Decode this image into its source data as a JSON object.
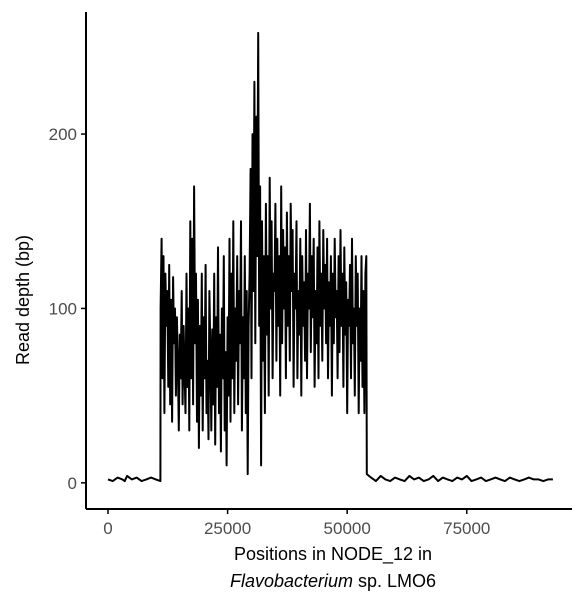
{
  "chart_data": {
    "type": "line",
    "title": "",
    "xlabel": "Positions in NODE_12 in",
    "xlabel_line2_italic": "Flavobacterium",
    "xlabel_line2_rest": " sp. LMO6",
    "ylabel": "Read depth (bp)",
    "xlim": [
      -4600,
      97000
    ],
    "ylim": [
      -15,
      270
    ],
    "xticks": [
      0,
      25000,
      50000,
      75000
    ],
    "xtick_labels": [
      "0",
      "25000",
      "50000",
      "75000"
    ],
    "yticks": [
      0,
      100,
      200
    ],
    "ytick_labels": [
      "0",
      "100",
      "200"
    ],
    "grid": false,
    "legend": "none",
    "line_color": "#000000",
    "series": [
      {
        "x": [
          0,
          1000,
          2000,
          3000,
          3500,
          4000,
          5000,
          6000,
          7000,
          8000,
          9000,
          10000,
          10950,
          11000,
          11200,
          11400,
          11600,
          11800,
          12000,
          12200,
          12400,
          12600,
          12800,
          13000,
          13200,
          13400,
          13600,
          13800,
          14000,
          14200,
          14400,
          14600,
          14800,
          15000,
          15200,
          15400,
          15600,
          15800,
          16000,
          16200,
          16400,
          16600,
          16800,
          17000,
          17200,
          17400,
          17600,
          17800,
          18000,
          18200,
          18400,
          18600,
          18800,
          19000,
          19200,
          19400,
          19600,
          19800,
          20000,
          20200,
          20400,
          20600,
          20800,
          21000,
          21200,
          21400,
          21600,
          21800,
          22000,
          22200,
          22400,
          22600,
          22800,
          23000,
          23200,
          23400,
          23600,
          23800,
          24000,
          24200,
          24400,
          24600,
          24800,
          25000,
          25200,
          25400,
          25600,
          25800,
          26000,
          26200,
          26400,
          26600,
          26800,
          27000,
          27200,
          27400,
          27600,
          27800,
          28000,
          28200,
          28400,
          28600,
          28800,
          29000,
          29200,
          29400,
          29600,
          29800,
          30000,
          30200,
          30400,
          30600,
          30800,
          31000,
          31200,
          31400,
          31600,
          31800,
          32000,
          32200,
          32400,
          32600,
          32800,
          33000,
          33200,
          33400,
          33600,
          33800,
          34000,
          34200,
          34400,
          34600,
          34800,
          35000,
          35200,
          35400,
          35600,
          35800,
          36000,
          36200,
          36400,
          36600,
          36800,
          37000,
          37200,
          37400,
          37600,
          37800,
          38000,
          38200,
          38400,
          38600,
          38800,
          39000,
          39200,
          39400,
          39600,
          39800,
          40000,
          40200,
          40400,
          40600,
          40800,
          41000,
          41200,
          41400,
          41600,
          41800,
          42000,
          42200,
          42400,
          42600,
          42800,
          43000,
          43200,
          43400,
          43600,
          43800,
          44000,
          44200,
          44400,
          44600,
          44800,
          45000,
          45200,
          45400,
          45600,
          45800,
          46000,
          46200,
          46400,
          46600,
          46800,
          47000,
          47200,
          47400,
          47600,
          47800,
          48000,
          48200,
          48400,
          48600,
          48800,
          49000,
          49200,
          49400,
          49600,
          49800,
          50000,
          50200,
          50400,
          50600,
          50800,
          51000,
          51200,
          51400,
          51600,
          51800,
          52000,
          52200,
          52400,
          52600,
          52800,
          53000,
          53200,
          53400,
          53600,
          53800,
          54000,
          54100,
          55000,
          56000,
          57000,
          58000,
          59000,
          60000,
          61000,
          62000,
          63000,
          64000,
          65000,
          66000,
          67000,
          68000,
          69000,
          70000,
          71000,
          72000,
          73000,
          74000,
          75000,
          76000,
          77000,
          78000,
          79000,
          80000,
          81000,
          82000,
          83000,
          84000,
          85000,
          86000,
          87000,
          88000,
          89000,
          90000,
          91000,
          92000,
          93000
        ],
        "values": [
          2,
          1,
          3,
          2,
          1,
          4,
          2,
          3,
          1,
          2,
          3,
          2,
          1,
          100,
          140,
          60,
          130,
          40,
          120,
          90,
          110,
          55,
          125,
          45,
          105,
          35,
          118,
          80,
          100,
          50,
          95,
          70,
          30,
          85,
          60,
          110,
          45,
          90,
          65,
          40,
          120,
          55,
          100,
          30,
          150,
          60,
          140,
          45,
          170,
          80,
          120,
          35,
          105,
          20,
          90,
          50,
          120,
          30,
          95,
          60,
          125,
          40,
          70,
          25,
          110,
          75,
          30,
          88,
          45,
          120,
          22,
          95,
          55,
          135,
          40,
          85,
          18,
          100,
          60,
          130,
          30,
          75,
          10,
          95,
          50,
          140,
          35,
          120,
          60,
          150,
          40,
          100,
          70,
          130,
          45,
          110,
          80,
          150,
          30,
          95,
          60,
          130,
          40,
          110,
          5,
          90,
          120,
          180,
          60,
          200,
          110,
          230,
          80,
          210,
          130,
          258,
          90,
          170,
          10,
          150,
          70,
          130,
          40,
          160,
          85,
          130,
          50,
          175,
          100,
          150,
          60,
          120,
          110,
          160,
          70,
          140,
          90,
          130,
          50,
          170,
          80,
          145,
          100,
          135,
          60,
          155,
          90,
          130,
          70,
          160,
          110,
          145,
          55,
          120,
          100,
          150,
          60,
          110,
          85,
          140,
          50,
          130,
          90,
          115,
          70,
          145,
          60,
          120,
          100,
          160,
          75,
          130,
          95,
          140,
          55,
          110,
          80,
          135,
          60,
          150,
          90,
          120,
          70,
          145,
          100,
          125,
          80,
          140,
          60,
          115,
          90,
          130,
          50,
          120,
          80,
          140,
          95,
          110,
          60,
          130,
          75,
          145,
          90,
          120,
          55,
          135,
          85,
          115,
          40,
          105,
          90,
          125,
          60,
          140,
          80,
          100,
          50,
          130,
          90,
          120,
          40,
          100,
          70,
          130,
          55,
          110,
          40,
          120,
          130,
          5,
          3,
          1,
          4,
          2,
          1,
          3,
          2,
          1,
          4,
          2,
          3,
          1,
          2,
          4,
          1,
          3,
          2,
          1,
          3,
          2,
          4,
          1,
          2,
          3,
          1,
          2,
          3,
          2,
          1,
          3,
          2,
          1,
          2,
          3,
          2,
          2,
          1,
          2,
          2
        ]
      }
    ]
  }
}
